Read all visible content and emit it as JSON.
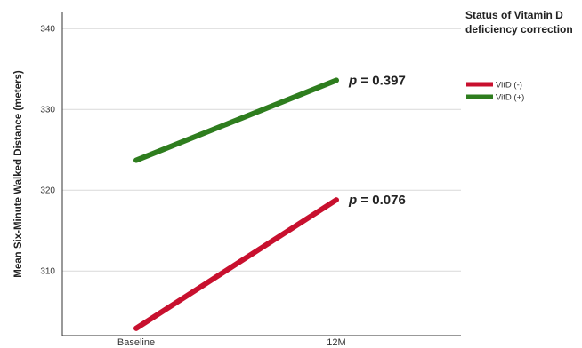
{
  "chart_data": {
    "type": "line",
    "ylabel": "Mean Six-Minute Walked Distance (meters)",
    "xlabel": "",
    "categories": [
      "Baseline",
      "12M"
    ],
    "ylim": [
      302,
      342
    ],
    "yticks": [
      310,
      320,
      330,
      340
    ],
    "grid": "horizontal",
    "legend": {
      "title_lines": [
        "Status of Vitamin D",
        "deficiency correction"
      ],
      "placement": "top-right"
    },
    "series": [
      {
        "name": "VitD (-)",
        "values": [
          302.9,
          318.8
        ],
        "color": "#c8102e",
        "annotation": "= 0.076"
      },
      {
        "name": "VitD (+)",
        "values": [
          323.7,
          333.6
        ],
        "color": "#2e7d1e",
        "annotation": "= 0.397"
      }
    ],
    "annotation_prefix": "p"
  }
}
